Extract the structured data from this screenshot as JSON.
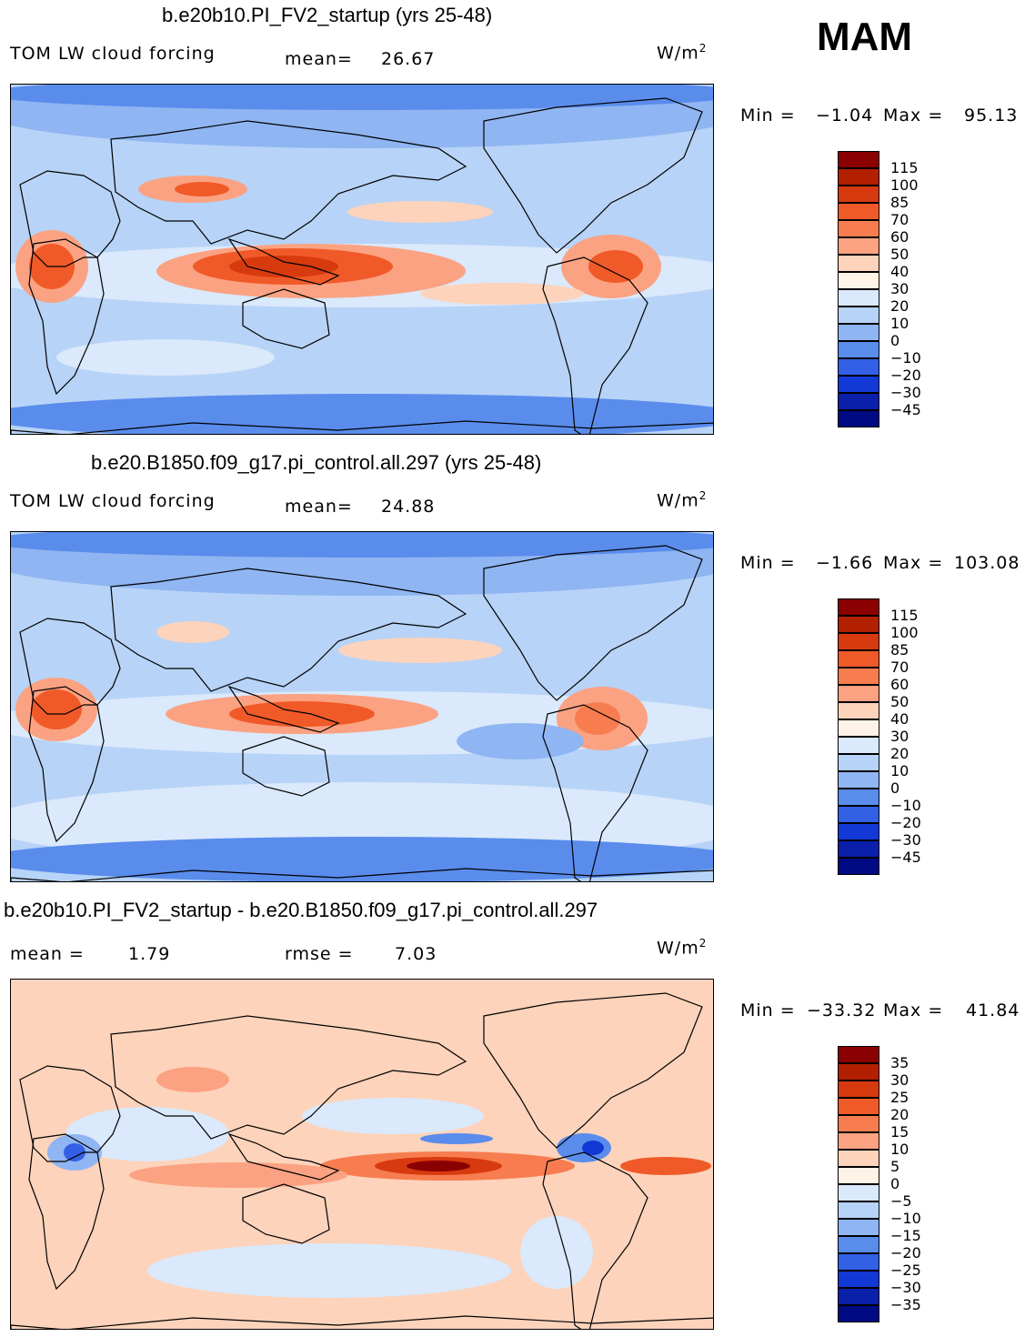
{
  "season": "MAM",
  "chart_data": [
    {
      "type": "heatmap",
      "title": "b.e20b10.PI_FV2_startup (yrs 25-48)",
      "variable": "TOM LW cloud forcing",
      "stat_label": "mean=",
      "stat_value": "26.67",
      "units_base": "W/m",
      "units_exp": "2",
      "min_label": "Min =",
      "min_value": "−1.04",
      "max_label": "Max =",
      "max_value": "95.13",
      "colorbar_levels": [
        "115",
        "100",
        "85",
        "70",
        "60",
        "50",
        "40",
        "30",
        "20",
        "10",
        "0",
        "−10",
        "−20",
        "−30",
        "−45"
      ],
      "colorbar_colors": [
        "#8b0000",
        "#b22000",
        "#d83a10",
        "#f05a28",
        "#f77d50",
        "#fba282",
        "#fdd3bb",
        "#fff2e6",
        "#dae9fb",
        "#b7d3f7",
        "#8fb5f2",
        "#5a8cec",
        "#3460e6",
        "#1238d6",
        "#0a1faa",
        "#000a82"
      ]
    },
    {
      "type": "heatmap",
      "title": "b.e20.B1850.f09_g17.pi_control.all.297 (yrs 25-48)",
      "variable": "TOM LW cloud forcing",
      "stat_label": "mean=",
      "stat_value": "24.88",
      "units_base": "W/m",
      "units_exp": "2",
      "min_label": "Min =",
      "min_value": "−1.66",
      "max_label": "Max =",
      "max_value": "103.08",
      "colorbar_levels": [
        "115",
        "100",
        "85",
        "70",
        "60",
        "50",
        "40",
        "30",
        "20",
        "10",
        "0",
        "−10",
        "−20",
        "−30",
        "−45"
      ],
      "colorbar_colors": [
        "#8b0000",
        "#b22000",
        "#d83a10",
        "#f05a28",
        "#f77d50",
        "#fba282",
        "#fdd3bb",
        "#fff2e6",
        "#dae9fb",
        "#b7d3f7",
        "#8fb5f2",
        "#5a8cec",
        "#3460e6",
        "#1238d6",
        "#0a1faa",
        "#000a82"
      ]
    },
    {
      "type": "heatmap",
      "title": "b.e20b10.PI_FV2_startup - b.e20.B1850.f09_g17.pi_control.all.297",
      "stat_label": "mean =",
      "stat_value": "1.79",
      "stat2_label": "rmse =",
      "stat2_value": "7.03",
      "units_base": "W/m",
      "units_exp": "2",
      "min_label": "Min =",
      "min_value": "−33.32",
      "max_label": "Max =",
      "max_value": "41.84",
      "colorbar_levels": [
        "35",
        "30",
        "25",
        "20",
        "15",
        "10",
        "5",
        "0",
        "−5",
        "−10",
        "−15",
        "−20",
        "−25",
        "−30",
        "−35"
      ],
      "colorbar_colors": [
        "#8b0000",
        "#b22000",
        "#d83a10",
        "#f05a28",
        "#f77d50",
        "#fba282",
        "#fdd3bb",
        "#fff2e6",
        "#dae9fb",
        "#b7d3f7",
        "#8fb5f2",
        "#5a8cec",
        "#3460e6",
        "#1238d6",
        "#0a1faa",
        "#000a82"
      ]
    }
  ]
}
